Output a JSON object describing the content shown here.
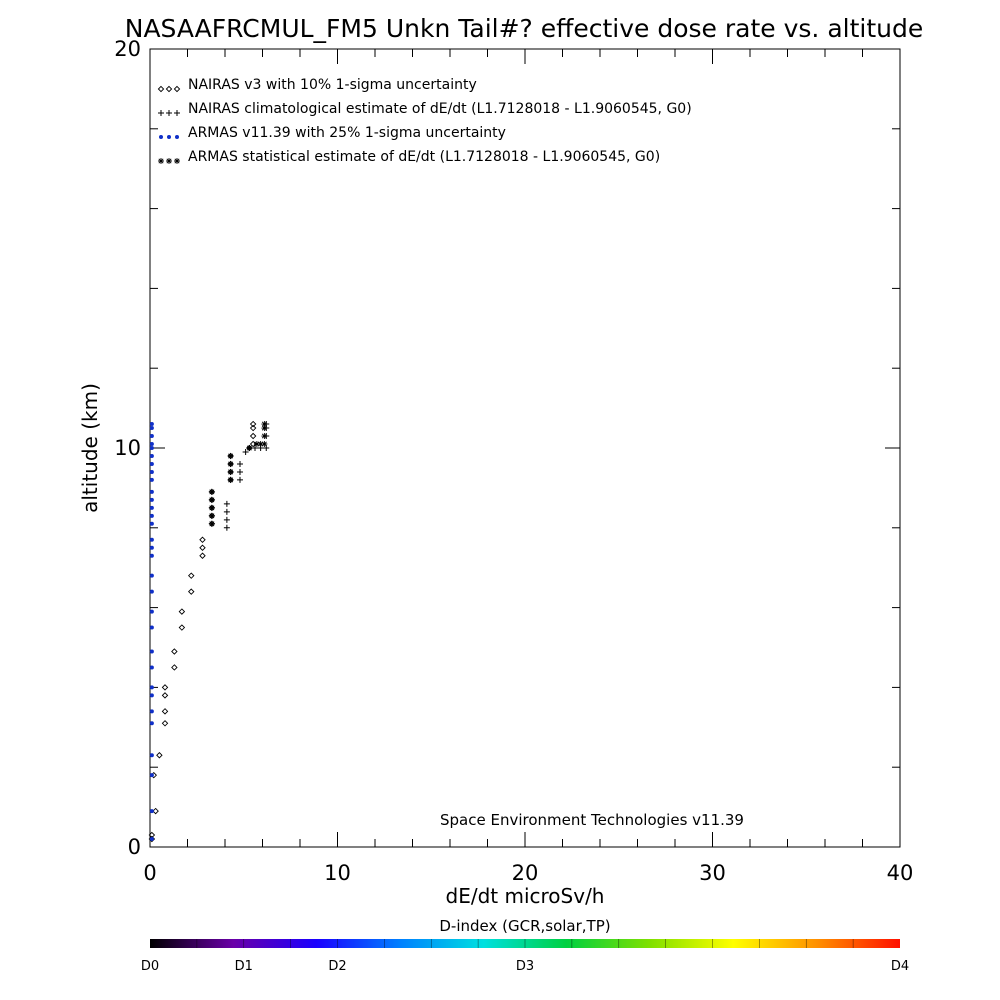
{
  "chart_data": {
    "type": "scatter",
    "title": "NASAAFRCMUL_FM5 Unkn Tail#? effective dose rate vs. altitude",
    "xlabel": "dE/dt microSv/h",
    "ylabel": "altitude (km)",
    "xlim": [
      0,
      40
    ],
    "ylim": [
      0,
      20
    ],
    "xticks": [
      "0",
      "10",
      "20",
      "30",
      "40"
    ],
    "yticks": [
      "0",
      "10",
      "20"
    ],
    "legend_position": "top-left",
    "credit": "Space Environment Technologies v11.39",
    "series": [
      {
        "name": "NAIRAS v3 with 10% 1-sigma uncertainty",
        "marker": "diamond",
        "color": "#000000",
        "points": [
          [
            0.1,
            0.2
          ],
          [
            0.1,
            0.3
          ],
          [
            0.3,
            0.9
          ],
          [
            0.2,
            1.8
          ],
          [
            0.5,
            2.3
          ],
          [
            0.8,
            3.1
          ],
          [
            0.8,
            3.4
          ],
          [
            0.8,
            3.8
          ],
          [
            0.8,
            4.0
          ],
          [
            1.3,
            4.5
          ],
          [
            1.3,
            4.9
          ],
          [
            1.7,
            5.5
          ],
          [
            1.7,
            5.9
          ],
          [
            2.2,
            6.4
          ],
          [
            2.2,
            6.8
          ],
          [
            2.8,
            7.3
          ],
          [
            2.8,
            7.5
          ],
          [
            2.8,
            7.7
          ],
          [
            3.3,
            8.1
          ],
          [
            3.3,
            8.3
          ],
          [
            3.3,
            8.5
          ],
          [
            3.3,
            8.7
          ],
          [
            3.3,
            8.9
          ],
          [
            4.3,
            9.2
          ],
          [
            4.3,
            9.4
          ],
          [
            4.3,
            9.6
          ],
          [
            4.3,
            9.8
          ],
          [
            5.3,
            10.0
          ],
          [
            5.5,
            10.1
          ],
          [
            5.5,
            10.3
          ],
          [
            5.5,
            10.5
          ],
          [
            5.5,
            10.6
          ]
        ]
      },
      {
        "name": "NAIRAS climatological estimate of dE/dt (L1.7128018 - L1.9060545, G0)",
        "marker": "plus",
        "color": "#000000",
        "points": [
          [
            4.1,
            8.0
          ],
          [
            4.1,
            8.2
          ],
          [
            4.1,
            8.4
          ],
          [
            4.1,
            8.6
          ],
          [
            4.8,
            9.2
          ],
          [
            4.8,
            9.4
          ],
          [
            4.8,
            9.6
          ],
          [
            5.1,
            9.9
          ],
          [
            5.3,
            10.0
          ],
          [
            5.6,
            10.0
          ],
          [
            5.9,
            10.0
          ],
          [
            6.2,
            10.0
          ],
          [
            6.2,
            10.3
          ],
          [
            6.2,
            10.5
          ],
          [
            6.2,
            10.6
          ]
        ]
      },
      {
        "name": "ARMAS v11.39 with 25% 1-sigma uncertainty",
        "marker": "dot",
        "color": "#1030c8",
        "points": [
          [
            0.1,
            0.2
          ],
          [
            0.1,
            0.9
          ],
          [
            0.1,
            1.8
          ],
          [
            0.1,
            2.3
          ],
          [
            0.1,
            3.1
          ],
          [
            0.1,
            3.4
          ],
          [
            0.1,
            3.8
          ],
          [
            0.1,
            4.0
          ],
          [
            0.1,
            4.5
          ],
          [
            0.1,
            4.9
          ],
          [
            0.1,
            5.5
          ],
          [
            0.1,
            5.9
          ],
          [
            0.1,
            6.4
          ],
          [
            0.1,
            6.8
          ],
          [
            0.1,
            7.3
          ],
          [
            0.1,
            7.5
          ],
          [
            0.1,
            7.7
          ],
          [
            0.1,
            8.1
          ],
          [
            0.1,
            8.3
          ],
          [
            0.1,
            8.5
          ],
          [
            0.1,
            8.7
          ],
          [
            0.1,
            8.9
          ],
          [
            0.1,
            9.2
          ],
          [
            0.1,
            9.4
          ],
          [
            0.1,
            9.6
          ],
          [
            0.1,
            9.8
          ],
          [
            0.1,
            10.0
          ],
          [
            0.1,
            10.1
          ],
          [
            0.1,
            10.3
          ],
          [
            0.1,
            10.5
          ],
          [
            0.1,
            10.6
          ]
        ]
      },
      {
        "name": "ARMAS statistical estimate of dE/dt (L1.7128018 - L1.9060545, G0)",
        "marker": "asterisk",
        "color": "#000000",
        "points": [
          [
            3.3,
            8.1
          ],
          [
            3.3,
            8.3
          ],
          [
            3.3,
            8.5
          ],
          [
            3.3,
            8.7
          ],
          [
            3.3,
            8.9
          ],
          [
            4.3,
            9.2
          ],
          [
            4.3,
            9.4
          ],
          [
            4.3,
            9.6
          ],
          [
            4.3,
            9.8
          ],
          [
            5.3,
            10.0
          ],
          [
            5.7,
            10.1
          ],
          [
            5.9,
            10.1
          ],
          [
            6.1,
            10.1
          ],
          [
            6.1,
            10.3
          ],
          [
            6.1,
            10.5
          ],
          [
            6.1,
            10.6
          ]
        ]
      }
    ],
    "colorbar": {
      "title": "D-index (GCR,solar,TP)",
      "labels": [
        {
          "text": "D0",
          "value": 0.0
        },
        {
          "text": "D1",
          "value": 0.125
        },
        {
          "text": "D2",
          "value": 0.25
        },
        {
          "text": "D3",
          "value": 0.5
        },
        {
          "text": "D4",
          "value": 1.0
        }
      ],
      "stops": [
        "#000000",
        "#6a00a8",
        "#1a00ff",
        "#0080ff",
        "#00e0e0",
        "#00d040",
        "#80e000",
        "#ffff00",
        "#ff9000",
        "#ff1000"
      ]
    }
  }
}
